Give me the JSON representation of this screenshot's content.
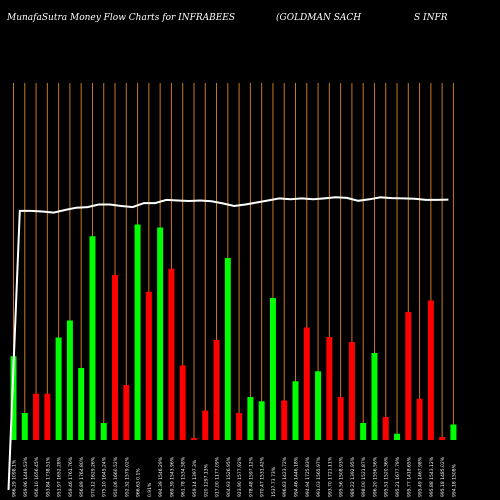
{
  "header": {
    "title": "MunafaSutra  Money Flow  Charts for INFRABEES",
    "company_left": "(GOLDMAN  SACH",
    "company_right": "S INFR"
  },
  "colors": {
    "background": "#000000",
    "grid": "#c87820",
    "up": "#00ff00",
    "down": "#ff0000",
    "line": "#ffffff",
    "label": "#ffffff"
  },
  "chart_data": {
    "type": "bar",
    "grid": "vertical",
    "bars": [
      {
        "dir": "up",
        "h": 0.335,
        "label": "966.29  1098.1%"
      },
      {
        "dir": "up",
        "h": 0.108,
        "label": "959.96 1449.53%"
      },
      {
        "dir": "down",
        "h": 0.185,
        "label": "956.10 1656.45%"
      },
      {
        "dir": "down",
        "h": 0.185,
        "label": "953.84 1738.51%"
      },
      {
        "dir": "up",
        "h": 0.41,
        "label": "951.97 1652.28%"
      },
      {
        "dir": "up",
        "h": 0.478,
        "label": "959.46 1761.76%"
      },
      {
        "dir": "up",
        "h": 0.288,
        "label": "956.89 1764.80%"
      },
      {
        "dir": "up",
        "h": 0.815,
        "label": "970.12 1629.26%"
      },
      {
        "dir": "up",
        "h": 0.068,
        "label": "975.10 1645.24%"
      },
      {
        "dir": "down",
        "h": 0.66,
        "label": "950.06 1660.52%"
      },
      {
        "dir": "down",
        "h": 0.22,
        "label": "952.32 1579.02%"
      },
      {
        "dir": "up",
        "h": 0.862,
        "label": "966.63 0.1%"
      },
      {
        "dir": "down",
        "h": 0.593,
        "label": "0.91%"
      },
      {
        "dir": "up",
        "h": 0.85,
        "label": "994.39 1546.29%"
      },
      {
        "dir": "down",
        "h": 0.685,
        "label": "969.39 1543.96%"
      },
      {
        "dir": "down",
        "h": 0.298,
        "label": "961.78 1534.58%"
      },
      {
        "dir": "down",
        "h": 0.008,
        "label": "959.14 1397.3%"
      },
      {
        "dir": "down",
        "h": 0.118,
        "label": "920  1297.13%"
      },
      {
        "dir": "down",
        "h": 0.4,
        "label": "917.00 1177.09%"
      },
      {
        "dir": "up",
        "h": 0.728,
        "label": "904.93 1526.95%"
      },
      {
        "dir": "down",
        "h": 0.108,
        "label": "923.90 1577.92%"
      },
      {
        "dir": "up",
        "h": 0.172,
        "label": "978.48 1597.12%"
      },
      {
        "dir": "up",
        "h": 0.155,
        "label": "970.47 1531.42%"
      },
      {
        "dir": "up",
        "h": 0.568,
        "label": "1537.73  73%"
      },
      {
        "dir": "down",
        "h": 0.158,
        "label": "996.83 1423.72%"
      },
      {
        "dir": "up",
        "h": 0.235,
        "label": "994.46 1446.18%"
      },
      {
        "dir": "down",
        "h": 0.45,
        "label": "994.94 1725.83%"
      },
      {
        "dir": "up",
        "h": 0.275,
        "label": "991.03 1565.97%"
      },
      {
        "dir": "down",
        "h": 0.412,
        "label": "993.70 1721.11%"
      },
      {
        "dir": "down",
        "h": 0.172,
        "label": "995.56 1508.93%"
      },
      {
        "dir": "down",
        "h": 0.392,
        "label": "989.22 1392.95%"
      },
      {
        "dir": "up",
        "h": 0.068,
        "label": "998.00 1521.87%"
      },
      {
        "dir": "up",
        "h": 0.348,
        "label": "996.20 1556.56%"
      },
      {
        "dir": "down",
        "h": 0.092,
        "label": "995.51 1520.36%"
      },
      {
        "dir": "up",
        "h": 0.025,
        "label": "995.21 1677.79%"
      },
      {
        "dir": "down",
        "h": 0.512,
        "label": "995.77 1418.65%"
      },
      {
        "dir": "down",
        "h": 0.165,
        "label": "995.49 1467.98%"
      },
      {
        "dir": "down",
        "h": 0.558,
        "label": "995.88 1543.12%"
      },
      {
        "dir": "down",
        "h": 0.012,
        "label": "995.18 1485.02%"
      },
      {
        "dir": "up",
        "h": 0.062,
        "label": "994.18 1508%"
      }
    ],
    "line": [
      0.0,
      0.79,
      0.79,
      0.788,
      0.784,
      0.793,
      0.801,
      0.803,
      0.812,
      0.812,
      0.807,
      0.803,
      0.817,
      0.817,
      0.828,
      0.826,
      0.824,
      0.826,
      0.823,
      0.816,
      0.807,
      0.812,
      0.819,
      0.826,
      0.833,
      0.83,
      0.833,
      0.83,
      0.833,
      0.837,
      0.835,
      0.825,
      0.83,
      0.837,
      0.834,
      0.833,
      0.832,
      0.828,
      0.828,
      0.829
    ]
  }
}
